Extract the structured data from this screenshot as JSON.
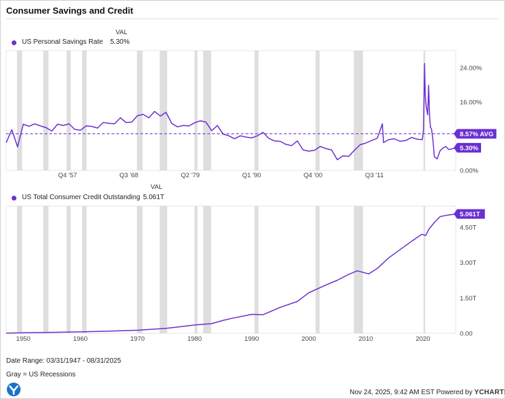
{
  "title": "Consumer Savings and Credit",
  "colors": {
    "series": "#6a2fd1",
    "recession": "#dedede",
    "axis": "#666666"
  },
  "legend_top": {
    "val_header": "VAL",
    "name": "US Personal Savings Rate",
    "value": "5.30%"
  },
  "legend_bottom": {
    "val_header": "VAL",
    "name": "US Total Consumer Credit Outstanding",
    "value": "5.061T"
  },
  "chart_data": [
    {
      "type": "line",
      "name": "US Personal Savings Rate",
      "x_range": [
        1947.0,
        2025.75
      ],
      "ylim": [
        0,
        28
      ],
      "y_ticks": [
        {
          "value": 0,
          "label": "0.00%"
        },
        {
          "value": 8,
          "label": "8.00%"
        },
        {
          "value": 16,
          "label": "16.00%"
        },
        {
          "value": 24,
          "label": "24.00%"
        }
      ],
      "x_ticks": [
        {
          "value": 1957.75,
          "label": "Q4 '57"
        },
        {
          "value": 1968.5,
          "label": "Q3 '68"
        },
        {
          "value": 1979.25,
          "label": "Q2 '79"
        },
        {
          "value": 1990.0,
          "label": "Q1 '90"
        },
        {
          "value": 2000.75,
          "label": "Q4 '00"
        },
        {
          "value": 2011.5,
          "label": "Q3 '11"
        }
      ],
      "average": {
        "value": 8.57,
        "label": "8.57% AVG"
      },
      "last_value": {
        "value": 5.3,
        "label": "5.30%"
      },
      "x": [
        1947.0,
        1948.0,
        1949.0,
        1950.0,
        1951.0,
        1952.0,
        1953.0,
        1954.0,
        1955.0,
        1956.0,
        1957.0,
        1958.0,
        1959.0,
        1960.0,
        1961.0,
        1962.0,
        1963.0,
        1964.0,
        1965.0,
        1966.0,
        1967.0,
        1968.0,
        1969.0,
        1970.0,
        1971.0,
        1972.0,
        1973.0,
        1974.0,
        1975.0,
        1976.0,
        1977.0,
        1978.0,
        1979.0,
        1980.0,
        1981.0,
        1982.0,
        1983.0,
        1984.0,
        1985.0,
        1986.0,
        1987.0,
        1988.0,
        1989.0,
        1990.0,
        1991.0,
        1992.0,
        1993.0,
        1994.0,
        1995.0,
        1996.0,
        1997.0,
        1998.0,
        1999.0,
        2000.0,
        2001.0,
        2002.0,
        2003.0,
        2004.0,
        2005.0,
        2006.0,
        2007.0,
        2008.0,
        2009.0,
        2010.0,
        2011.0,
        2012.0,
        2012.9,
        2013.1,
        2014.0,
        2015.0,
        2016.0,
        2017.0,
        2018.0,
        2019.0,
        2019.9,
        2020.1,
        2020.28,
        2020.42,
        2020.58,
        2020.83,
        2021.0,
        2021.17,
        2021.33,
        2021.5,
        2021.75,
        2022.0,
        2022.5,
        2023.0,
        2023.5,
        2024.0,
        2024.5,
        2025.0,
        2025.67
      ],
      "values": [
        6.5,
        9.5,
        5.5,
        10.8,
        10.3,
        10.9,
        10.4,
        10.0,
        9.2,
        10.8,
        10.5,
        10.9,
        9.6,
        9.4,
        10.4,
        10.3,
        9.9,
        11.2,
        11.0,
        10.9,
        12.3,
        11.2,
        11.3,
        12.8,
        13.1,
        12.3,
        13.8,
        12.7,
        13.6,
        11.0,
        10.2,
        10.5,
        10.4,
        11.1,
        11.6,
        11.3,
        9.3,
        10.5,
        8.5,
        8.1,
        7.4,
        8.1,
        7.8,
        7.6,
        8.1,
        8.9,
        7.5,
        6.9,
        6.8,
        6.1,
        5.8,
        6.9,
        4.8,
        4.5,
        4.7,
        5.6,
        5.1,
        4.8,
        2.5,
        3.4,
        3.3,
        4.7,
        6.0,
        6.4,
        7.0,
        7.5,
        10.9,
        6.5,
        7.2,
        7.4,
        6.8,
        7.0,
        7.7,
        7.3,
        7.2,
        9.6,
        25.0,
        17.4,
        14.9,
        13.0,
        19.9,
        12.5,
        10.0,
        9.8,
        7.3,
        3.2,
        2.7,
        4.6,
        5.2,
        5.6,
        4.9,
        5.0,
        5.3
      ]
    },
    {
      "type": "line",
      "name": "US Total Consumer Credit Outstanding",
      "x_range": [
        1947.0,
        2025.75
      ],
      "ylim": [
        0,
        5.4
      ],
      "unit": "T",
      "y_ticks": [
        {
          "value": 0,
          "label": "0.00"
        },
        {
          "value": 1.5,
          "label": "1.50T"
        },
        {
          "value": 3.0,
          "label": "3.00T"
        },
        {
          "value": 4.5,
          "label": "4.50T"
        }
      ],
      "x_ticks": [
        {
          "value": 1950,
          "label": "1950"
        },
        {
          "value": 1960,
          "label": "1960"
        },
        {
          "value": 1970,
          "label": "1970"
        },
        {
          "value": 1980,
          "label": "1980"
        },
        {
          "value": 1990,
          "label": "1990"
        },
        {
          "value": 2000,
          "label": "2000"
        },
        {
          "value": 2010,
          "label": "2010"
        },
        {
          "value": 2020,
          "label": "2020"
        }
      ],
      "last_value": {
        "value": 5.061,
        "label": "5.061T"
      },
      "x": [
        1947.0,
        1950.0,
        1955.0,
        1960.0,
        1965.0,
        1970.0,
        1975.0,
        1980.0,
        1983.0,
        1985.0,
        1987.0,
        1990.0,
        1992.0,
        1995.0,
        1998.0,
        2000.0,
        2003.0,
        2005.0,
        2007.0,
        2008.5,
        2010.5,
        2012.0,
        2014.0,
        2016.0,
        2018.0,
        2019.8,
        2020.5,
        2021.0,
        2022.0,
        2023.0,
        2024.0,
        2025.67
      ],
      "values": [
        0.01,
        0.02,
        0.04,
        0.06,
        0.09,
        0.13,
        0.21,
        0.35,
        0.41,
        0.55,
        0.66,
        0.8,
        0.79,
        1.1,
        1.35,
        1.72,
        2.05,
        2.25,
        2.5,
        2.65,
        2.52,
        2.75,
        3.2,
        3.55,
        3.9,
        4.2,
        4.15,
        4.4,
        4.7,
        4.95,
        5.0,
        5.06
      ]
    }
  ],
  "recessions": [
    [
      1948.9,
      1949.8
    ],
    [
      1953.5,
      1954.4
    ],
    [
      1957.6,
      1958.3
    ],
    [
      1960.3,
      1961.1
    ],
    [
      1969.9,
      1970.9
    ],
    [
      1973.9,
      1975.2
    ],
    [
      1980.0,
      1980.5
    ],
    [
      1981.5,
      1982.9
    ],
    [
      1990.5,
      1991.2
    ],
    [
      2001.2,
      2001.9
    ],
    [
      2007.9,
      2009.5
    ],
    [
      2020.1,
      2020.4
    ]
  ],
  "footer": {
    "date_range": "Date Range: 03/31/1947 - 08/31/2025",
    "recession_note": "Gray = US Recessions",
    "timestamp": "Nov 24, 2025, 9:42 AM EST",
    "powered_by": "Powered by",
    "brand": "YCHARTS"
  }
}
